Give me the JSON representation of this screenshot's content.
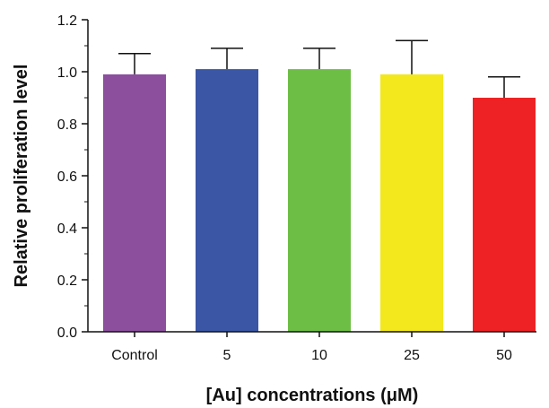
{
  "chart_data": {
    "type": "bar",
    "title": "",
    "xlabel": "[Au] concentrations (μM)",
    "ylabel": "Relative proliferation level",
    "categories": [
      "Control",
      "5",
      "10",
      "25",
      "50"
    ],
    "values": [
      0.99,
      1.01,
      1.01,
      0.99,
      0.9
    ],
    "errors": [
      0.08,
      0.08,
      0.08,
      0.13,
      0.08
    ],
    "colors": [
      "#8B4F9E",
      "#3A56A5",
      "#6DBE45",
      "#F2E81D",
      "#EE2224"
    ],
    "ylim": [
      0,
      1.2
    ],
    "yticks": [
      "0.0",
      "0.2",
      "0.4",
      "0.6",
      "0.8",
      "1.0",
      "1.2"
    ],
    "grid": false,
    "legend": "none"
  }
}
